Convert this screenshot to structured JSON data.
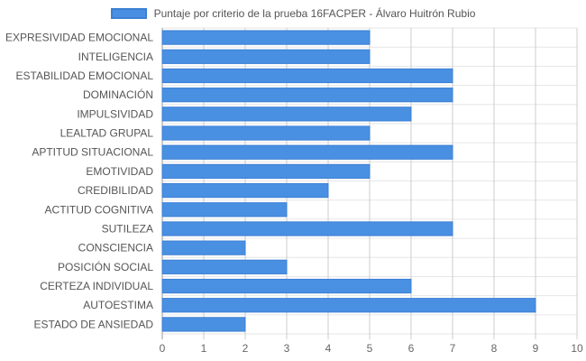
{
  "chart_data": {
    "type": "bar",
    "orientation": "horizontal",
    "categories": [
      "EXPRESIVIDAD EMOCIONAL",
      "INTELIGENCIA",
      "ESTABILIDAD EMOCIONAL",
      "DOMINACIÓN",
      "IMPULSIVIDAD",
      "LEALTAD GRUPAL",
      "APTITUD SITUACIONAL",
      "EMOTIVIDAD",
      "CREDIBILIDAD",
      "ACTITUD COGNITIVA",
      "SUTILEZA",
      "CONSCIENCIA",
      "POSICIÓN SOCIAL",
      "CERTEZA INDIVIDUAL",
      "AUTOESTIMA",
      "ESTADO DE ANSIEDAD"
    ],
    "series": [
      {
        "name": "Puntaje por criterio de la prueba 16FACPER - Álvaro Huitrón Rubio",
        "values": [
          5,
          5,
          7,
          7,
          6,
          5,
          7,
          5,
          4,
          3,
          7,
          2,
          3,
          6,
          9,
          2
        ],
        "color": "#4a90e2"
      }
    ],
    "xlim": [
      0,
      10
    ],
    "xticks": [
      "0",
      "1",
      "2",
      "3",
      "4",
      "5",
      "6",
      "7",
      "8",
      "9",
      "10"
    ],
    "grid": true,
    "legend_position": "top"
  }
}
